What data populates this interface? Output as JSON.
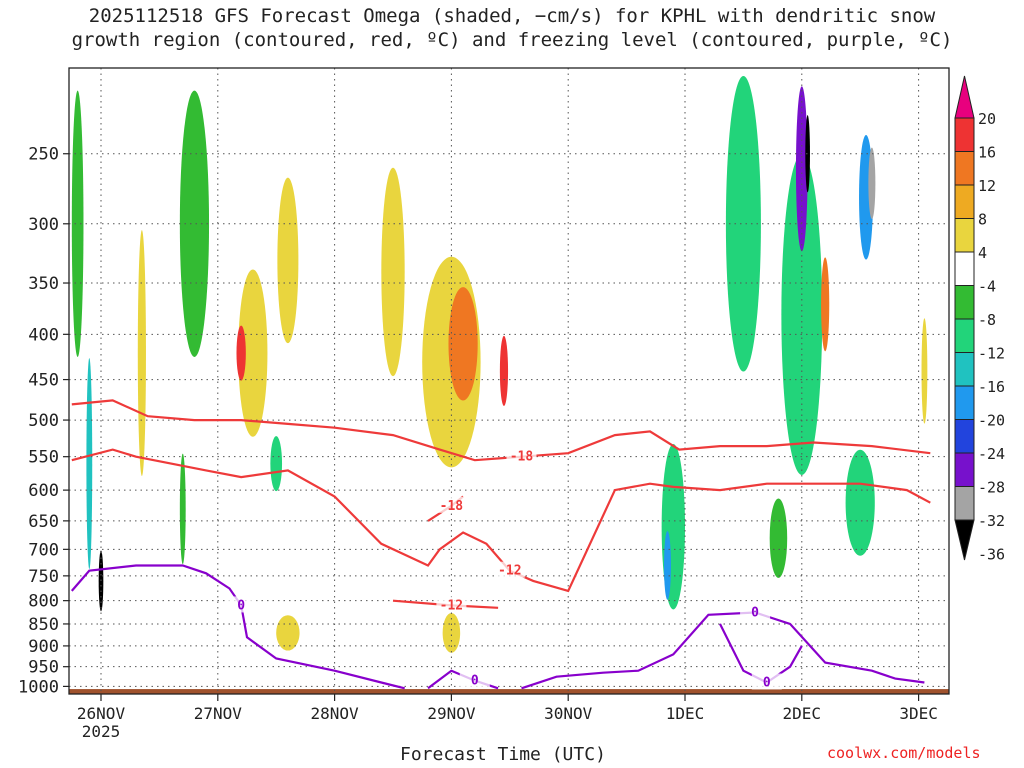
{
  "title_line1": "2025112518 GFS Forecast Omega (shaded, −cm/s) for KPHL with dendritic snow",
  "title_line2": "growth region (contoured, red, ºC) and freezing level (contoured, purple, ºC)",
  "watermark": "coolwx.com/models",
  "chart_data": {
    "type": "heatmap",
    "xlabel": "Forecast Time (UTC)",
    "ylabel": "",
    "x_ticks": [
      "26NOV",
      "27NOV",
      "28NOV",
      "29NOV",
      "30NOV",
      "1DEC",
      "2DEC",
      "3DEC"
    ],
    "x_year": "2025",
    "x_range_days": [
      -0.25,
      7.1
    ],
    "y_ticks": [
      250,
      300,
      350,
      400,
      450,
      500,
      550,
      600,
      650,
      700,
      750,
      800,
      850,
      900,
      950,
      1000
    ],
    "y_range_hpa": [
      200,
      1020
    ],
    "surface_pressure_hpa": 1007,
    "colorbar": {
      "labels": [
        "20",
        "16",
        "12",
        "8",
        "4",
        "-4",
        "-8",
        "-12",
        "-16",
        "-20",
        "-24",
        "-28",
        "-32",
        "-36"
      ],
      "colors": [
        "#e8007e",
        "#ee3333",
        "#ef7722",
        "#eeaa22",
        "#e9d53e",
        "#ffffff",
        "#33bb33",
        "#22d47a",
        "#20c2c0",
        "#2099ee",
        "#2244dd",
        "#7711cc",
        "#a4a4a4",
        "#000000"
      ]
    },
    "shading": [
      {
        "t": 1.3,
        "p": 420,
        "w": 0.25,
        "h": 180,
        "value": 6
      },
      {
        "t": 1.2,
        "p": 420,
        "w": 0.08,
        "h": 60,
        "value": 18
      },
      {
        "t": 1.6,
        "p": 330,
        "w": 0.18,
        "h": 140,
        "value": 6
      },
      {
        "t": 2.5,
        "p": 340,
        "w": 0.2,
        "h": 180,
        "value": 5
      },
      {
        "t": 3.0,
        "p": 430,
        "w": 0.5,
        "h": 230,
        "value": 7
      },
      {
        "t": 3.1,
        "p": 410,
        "w": 0.25,
        "h": 120,
        "value": 12
      },
      {
        "t": 3.45,
        "p": 440,
        "w": 0.07,
        "h": 80,
        "value": 19
      },
      {
        "t": 0.35,
        "p": 420,
        "w": 0.07,
        "h": 260,
        "value": 5
      },
      {
        "t": 1.6,
        "p": 870,
        "w": 0.2,
        "h": 80,
        "value": 6
      },
      {
        "t": 3.0,
        "p": 870,
        "w": 0.15,
        "h": 90,
        "value": 6
      },
      {
        "t": -0.1,
        "p": 560,
        "w": 0.05,
        "h": 300,
        "value": -14
      },
      {
        "t": 0.0,
        "p": 760,
        "w": 0.04,
        "h": 120,
        "value": -34
      },
      {
        "t": -0.2,
        "p": 300,
        "w": 0.1,
        "h": 200,
        "value": -6
      },
      {
        "t": 0.8,
        "p": 300,
        "w": 0.25,
        "h": 200,
        "value": -7
      },
      {
        "t": 0.7,
        "p": 630,
        "w": 0.05,
        "h": 180,
        "value": -6
      },
      {
        "t": 1.5,
        "p": 560,
        "w": 0.1,
        "h": 80,
        "value": -9
      },
      {
        "t": 4.9,
        "p": 660,
        "w": 0.2,
        "h": 280,
        "value": -10
      },
      {
        "t": 4.85,
        "p": 730,
        "w": 0.06,
        "h": 130,
        "value": -16
      },
      {
        "t": 5.5,
        "p": 300,
        "w": 0.3,
        "h": 220,
        "value": -8
      },
      {
        "t": 6.0,
        "p": 380,
        "w": 0.35,
        "h": 300,
        "value": -9
      },
      {
        "t": 6.0,
        "p": 260,
        "w": 0.1,
        "h": 110,
        "value": -26
      },
      {
        "t": 6.05,
        "p": 250,
        "w": 0.04,
        "h": 50,
        "value": -36
      },
      {
        "t": 6.55,
        "p": 280,
        "w": 0.12,
        "h": 90,
        "value": -18
      },
      {
        "t": 6.6,
        "p": 270,
        "w": 0.06,
        "h": 50,
        "value": -30
      },
      {
        "t": 6.5,
        "p": 620,
        "w": 0.25,
        "h": 170,
        "value": -10
      },
      {
        "t": 5.8,
        "p": 680,
        "w": 0.15,
        "h": 140,
        "value": -7
      },
      {
        "t": 6.2,
        "p": 370,
        "w": 0.07,
        "h": 90,
        "value": 14
      },
      {
        "t": 7.05,
        "p": 440,
        "w": 0.05,
        "h": 120,
        "value": 6
      }
    ],
    "contours_dgz": [
      {
        "level": -18,
        "label": "-18",
        "points": [
          [
            -0.25,
            480
          ],
          [
            0.1,
            475
          ],
          [
            0.4,
            495
          ],
          [
            0.8,
            500
          ],
          [
            1.2,
            500
          ],
          [
            1.6,
            505
          ],
          [
            2.0,
            510
          ],
          [
            2.5,
            520
          ],
          [
            2.9,
            540
          ],
          [
            3.2,
            555
          ],
          [
            3.6,
            550
          ],
          [
            4.0,
            545
          ],
          [
            4.4,
            520
          ],
          [
            4.7,
            515
          ],
          [
            4.95,
            540
          ],
          [
            5.3,
            535
          ],
          [
            5.7,
            535
          ],
          [
            6.1,
            530
          ],
          [
            6.6,
            535
          ],
          [
            7.1,
            545
          ]
        ]
      },
      {
        "level": -12,
        "label": "-12",
        "points": [
          [
            -0.25,
            555
          ],
          [
            0.1,
            540
          ],
          [
            0.3,
            550
          ],
          [
            0.9,
            570
          ],
          [
            1.2,
            580
          ],
          [
            1.6,
            570
          ],
          [
            2.0,
            610
          ],
          [
            2.4,
            690
          ],
          [
            2.8,
            730
          ],
          [
            2.9,
            700
          ],
          [
            3.1,
            670
          ],
          [
            3.3,
            690
          ],
          [
            3.5,
            740
          ],
          [
            3.7,
            760
          ],
          [
            4.0,
            780
          ],
          [
            4.4,
            600
          ],
          [
            4.7,
            590
          ],
          [
            4.9,
            595
          ],
          [
            5.3,
            600
          ],
          [
            5.7,
            590
          ],
          [
            6.1,
            590
          ],
          [
            6.5,
            590
          ],
          [
            6.9,
            600
          ],
          [
            7.1,
            620
          ]
        ]
      },
      {
        "level": -12,
        "label": "-12",
        "points": [
          [
            2.5,
            800
          ],
          [
            3.0,
            810
          ],
          [
            3.4,
            815
          ]
        ]
      },
      {
        "level": -18,
        "label": "-18",
        "points": [
          [
            2.8,
            650
          ],
          [
            3.0,
            625
          ],
          [
            3.1,
            610
          ]
        ]
      }
    ],
    "contours_freezing": [
      {
        "level": 0,
        "label": "0",
        "points": [
          [
            -0.25,
            780
          ],
          [
            -0.1,
            740
          ],
          [
            0.3,
            730
          ],
          [
            0.7,
            730
          ],
          [
            0.9,
            745
          ],
          [
            1.1,
            775
          ],
          [
            1.2,
            810
          ],
          [
            1.25,
            880
          ],
          [
            1.5,
            930
          ],
          [
            2.0,
            960
          ],
          [
            2.4,
            990
          ],
          [
            2.6,
            1005
          ]
        ]
      },
      {
        "level": 0,
        "label": "0",
        "points": [
          [
            2.8,
            1005
          ],
          [
            3.0,
            960
          ],
          [
            3.2,
            985
          ],
          [
            3.4,
            1005
          ]
        ]
      },
      {
        "level": 0,
        "label": "0",
        "points": [
          [
            3.6,
            1005
          ],
          [
            3.9,
            975
          ],
          [
            4.3,
            965
          ],
          [
            4.6,
            960
          ],
          [
            4.9,
            920
          ],
          [
            5.2,
            830
          ],
          [
            5.6,
            825
          ],
          [
            5.9,
            850
          ],
          [
            6.2,
            940
          ],
          [
            6.6,
            960
          ],
          [
            6.8,
            980
          ],
          [
            7.05,
            990
          ]
        ]
      },
      {
        "level": 0,
        "label": "0",
        "points": [
          [
            5.3,
            850
          ],
          [
            5.5,
            960
          ],
          [
            5.7,
            990
          ],
          [
            5.9,
            950
          ],
          [
            6.0,
            900
          ]
        ]
      }
    ]
  }
}
